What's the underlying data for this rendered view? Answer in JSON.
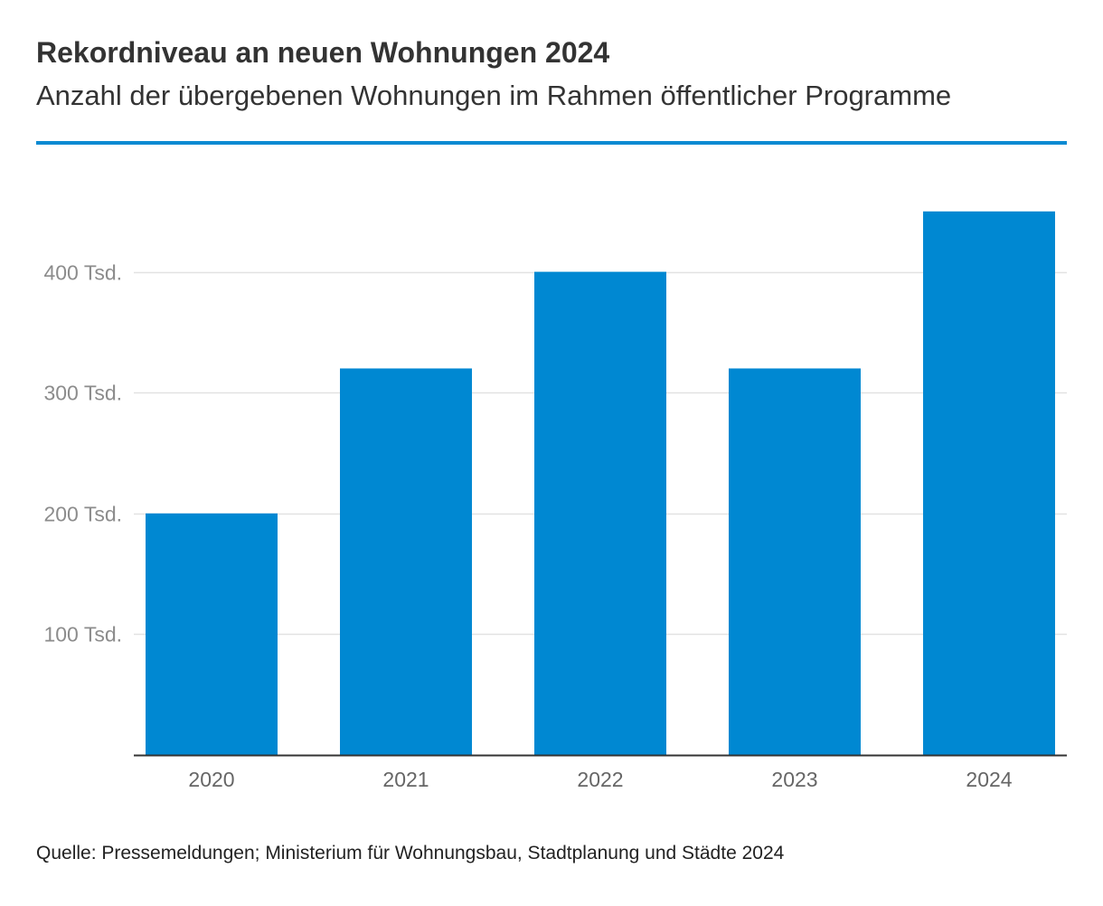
{
  "header": {
    "title": "Rekordniveau an neuen Wohnungen 2024",
    "subtitle": "Anzahl der übergebenen Wohnungen im Rahmen öffentlicher Programme"
  },
  "footer": {
    "source": "Quelle: Pressemeldungen; Ministerium für Wohnungsbau, Stadtplanung und Städte 2024"
  },
  "colors": {
    "accent": "#0a8ad2",
    "bar": "#0088d2",
    "grid": "#e2e2e2",
    "axis": "#333333",
    "tick_label": "#8c8c8c",
    "category_label": "#666666"
  },
  "chart_data": {
    "type": "bar",
    "title": "Rekordniveau an neuen Wohnungen 2024",
    "subtitle": "Anzahl der übergebenen Wohnungen im Rahmen öffentlicher Programme",
    "categories": [
      "2020",
      "2021",
      "2022",
      "2023",
      "2024"
    ],
    "values": [
      200000,
      320000,
      400000,
      320000,
      450000
    ],
    "ylim": [
      0,
      500000
    ],
    "yticks": [
      100000,
      200000,
      300000,
      400000
    ],
    "ytick_labels": [
      "100 Tsd.",
      "200 Tsd.",
      "300 Tsd.",
      "400 Tsd."
    ],
    "grid": true,
    "legend": "none",
    "xlabel": "",
    "ylabel": ""
  }
}
